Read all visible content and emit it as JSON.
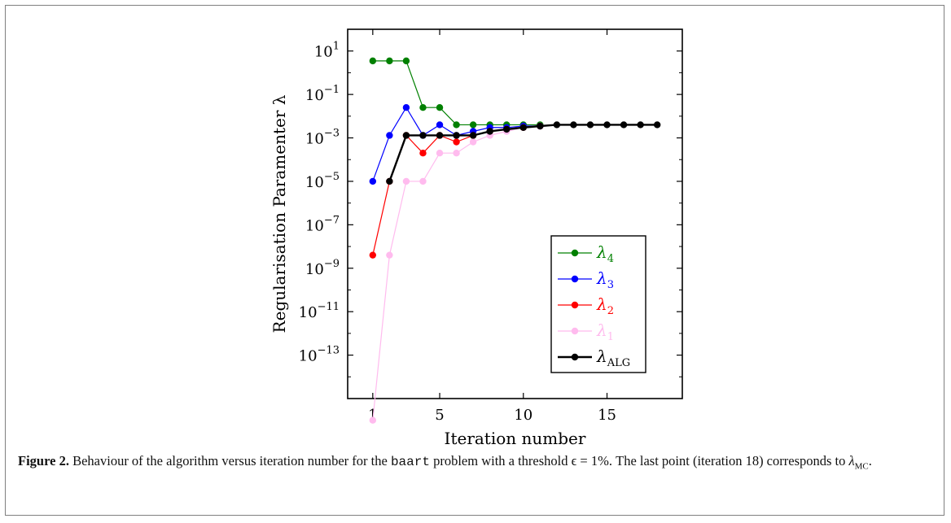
{
  "chart_data": {
    "type": "line",
    "xlabel": "Iteration number",
    "ylabel": "Regularisation Paramenter λ",
    "xlim": [
      -0.5,
      19.5
    ],
    "ylim_log10": [
      -15,
      2
    ],
    "x_ticks": [
      1,
      5,
      10,
      15
    ],
    "y_ticks": [
      {
        "base": "10",
        "exp": "1",
        "value_log10": 1
      },
      {
        "base": "10",
        "exp": "−1",
        "value_log10": -1
      },
      {
        "base": "10",
        "exp": "−3",
        "value_log10": -3
      },
      {
        "base": "10",
        "exp": "−5",
        "value_log10": -5
      },
      {
        "base": "10",
        "exp": "−7",
        "value_log10": -7
      },
      {
        "base": "10",
        "exp": "−9",
        "value_log10": -9
      },
      {
        "base": "10",
        "exp": "−11",
        "value_log10": -11
      },
      {
        "base": "10",
        "exp": "−13",
        "value_log10": -13
      }
    ],
    "y_scale": "log",
    "grid": false,
    "legend_position": "bottom-right",
    "series": [
      {
        "name": "λ",
        "sub": "4",
        "color": "#008000",
        "x": [
          1,
          2,
          3,
          4,
          5,
          6,
          7,
          8,
          9,
          10,
          11
        ],
        "y": [
          3.5,
          3.5,
          3.5,
          0.025,
          0.025,
          0.004,
          0.004,
          0.004,
          0.004,
          0.004,
          0.004
        ]
      },
      {
        "name": "λ",
        "sub": "3",
        "color": "#0000ff",
        "x": [
          1,
          2,
          3,
          4,
          5,
          6,
          7,
          8,
          9,
          10,
          11
        ],
        "y": [
          1e-05,
          0.0013,
          0.025,
          0.0013,
          0.004,
          0.0013,
          0.002,
          0.003,
          0.003,
          0.0035,
          0.0035
        ]
      },
      {
        "name": "λ",
        "sub": "2",
        "color": "#ff0000",
        "x": [
          1,
          2,
          3,
          4,
          5,
          6,
          7,
          8,
          9,
          10,
          11
        ],
        "y": [
          4e-09,
          1e-05,
          0.0013,
          0.0002,
          0.0013,
          0.00065,
          0.0013,
          0.002,
          0.0025,
          0.003,
          0.0035
        ]
      },
      {
        "name": "λ",
        "sub": "1",
        "color": "#ffbbee",
        "x": [
          1,
          2,
          3,
          4,
          5,
          6,
          7,
          8,
          9,
          10,
          11
        ],
        "y": [
          1e-16,
          4e-09,
          1e-05,
          1e-05,
          0.0002,
          0.0002,
          0.00065,
          0.0013,
          0.002,
          0.003,
          0.0035
        ]
      },
      {
        "name": "λ",
        "sub": "ALG",
        "color": "#000000",
        "x": [
          2,
          3,
          4,
          5,
          6,
          7,
          8,
          9,
          10,
          11,
          12,
          13,
          14,
          15,
          16,
          17,
          18
        ],
        "y": [
          1e-05,
          0.0013,
          0.0013,
          0.0013,
          0.0013,
          0.0013,
          0.002,
          0.0025,
          0.003,
          0.0035,
          0.004,
          0.004,
          0.004,
          0.004,
          0.004,
          0.004,
          0.004
        ]
      }
    ]
  },
  "caption": {
    "label": "Figure 2.",
    "text_1": " Behaviour of the algorithm versus iteration number for the ",
    "code": "baart",
    "text_2": " problem with a threshold ϵ = 1%. The last point (iteration 18) corresponds to ",
    "lambda_symbol": "λ",
    "lambda_sub": "MC",
    "text_3": "."
  }
}
